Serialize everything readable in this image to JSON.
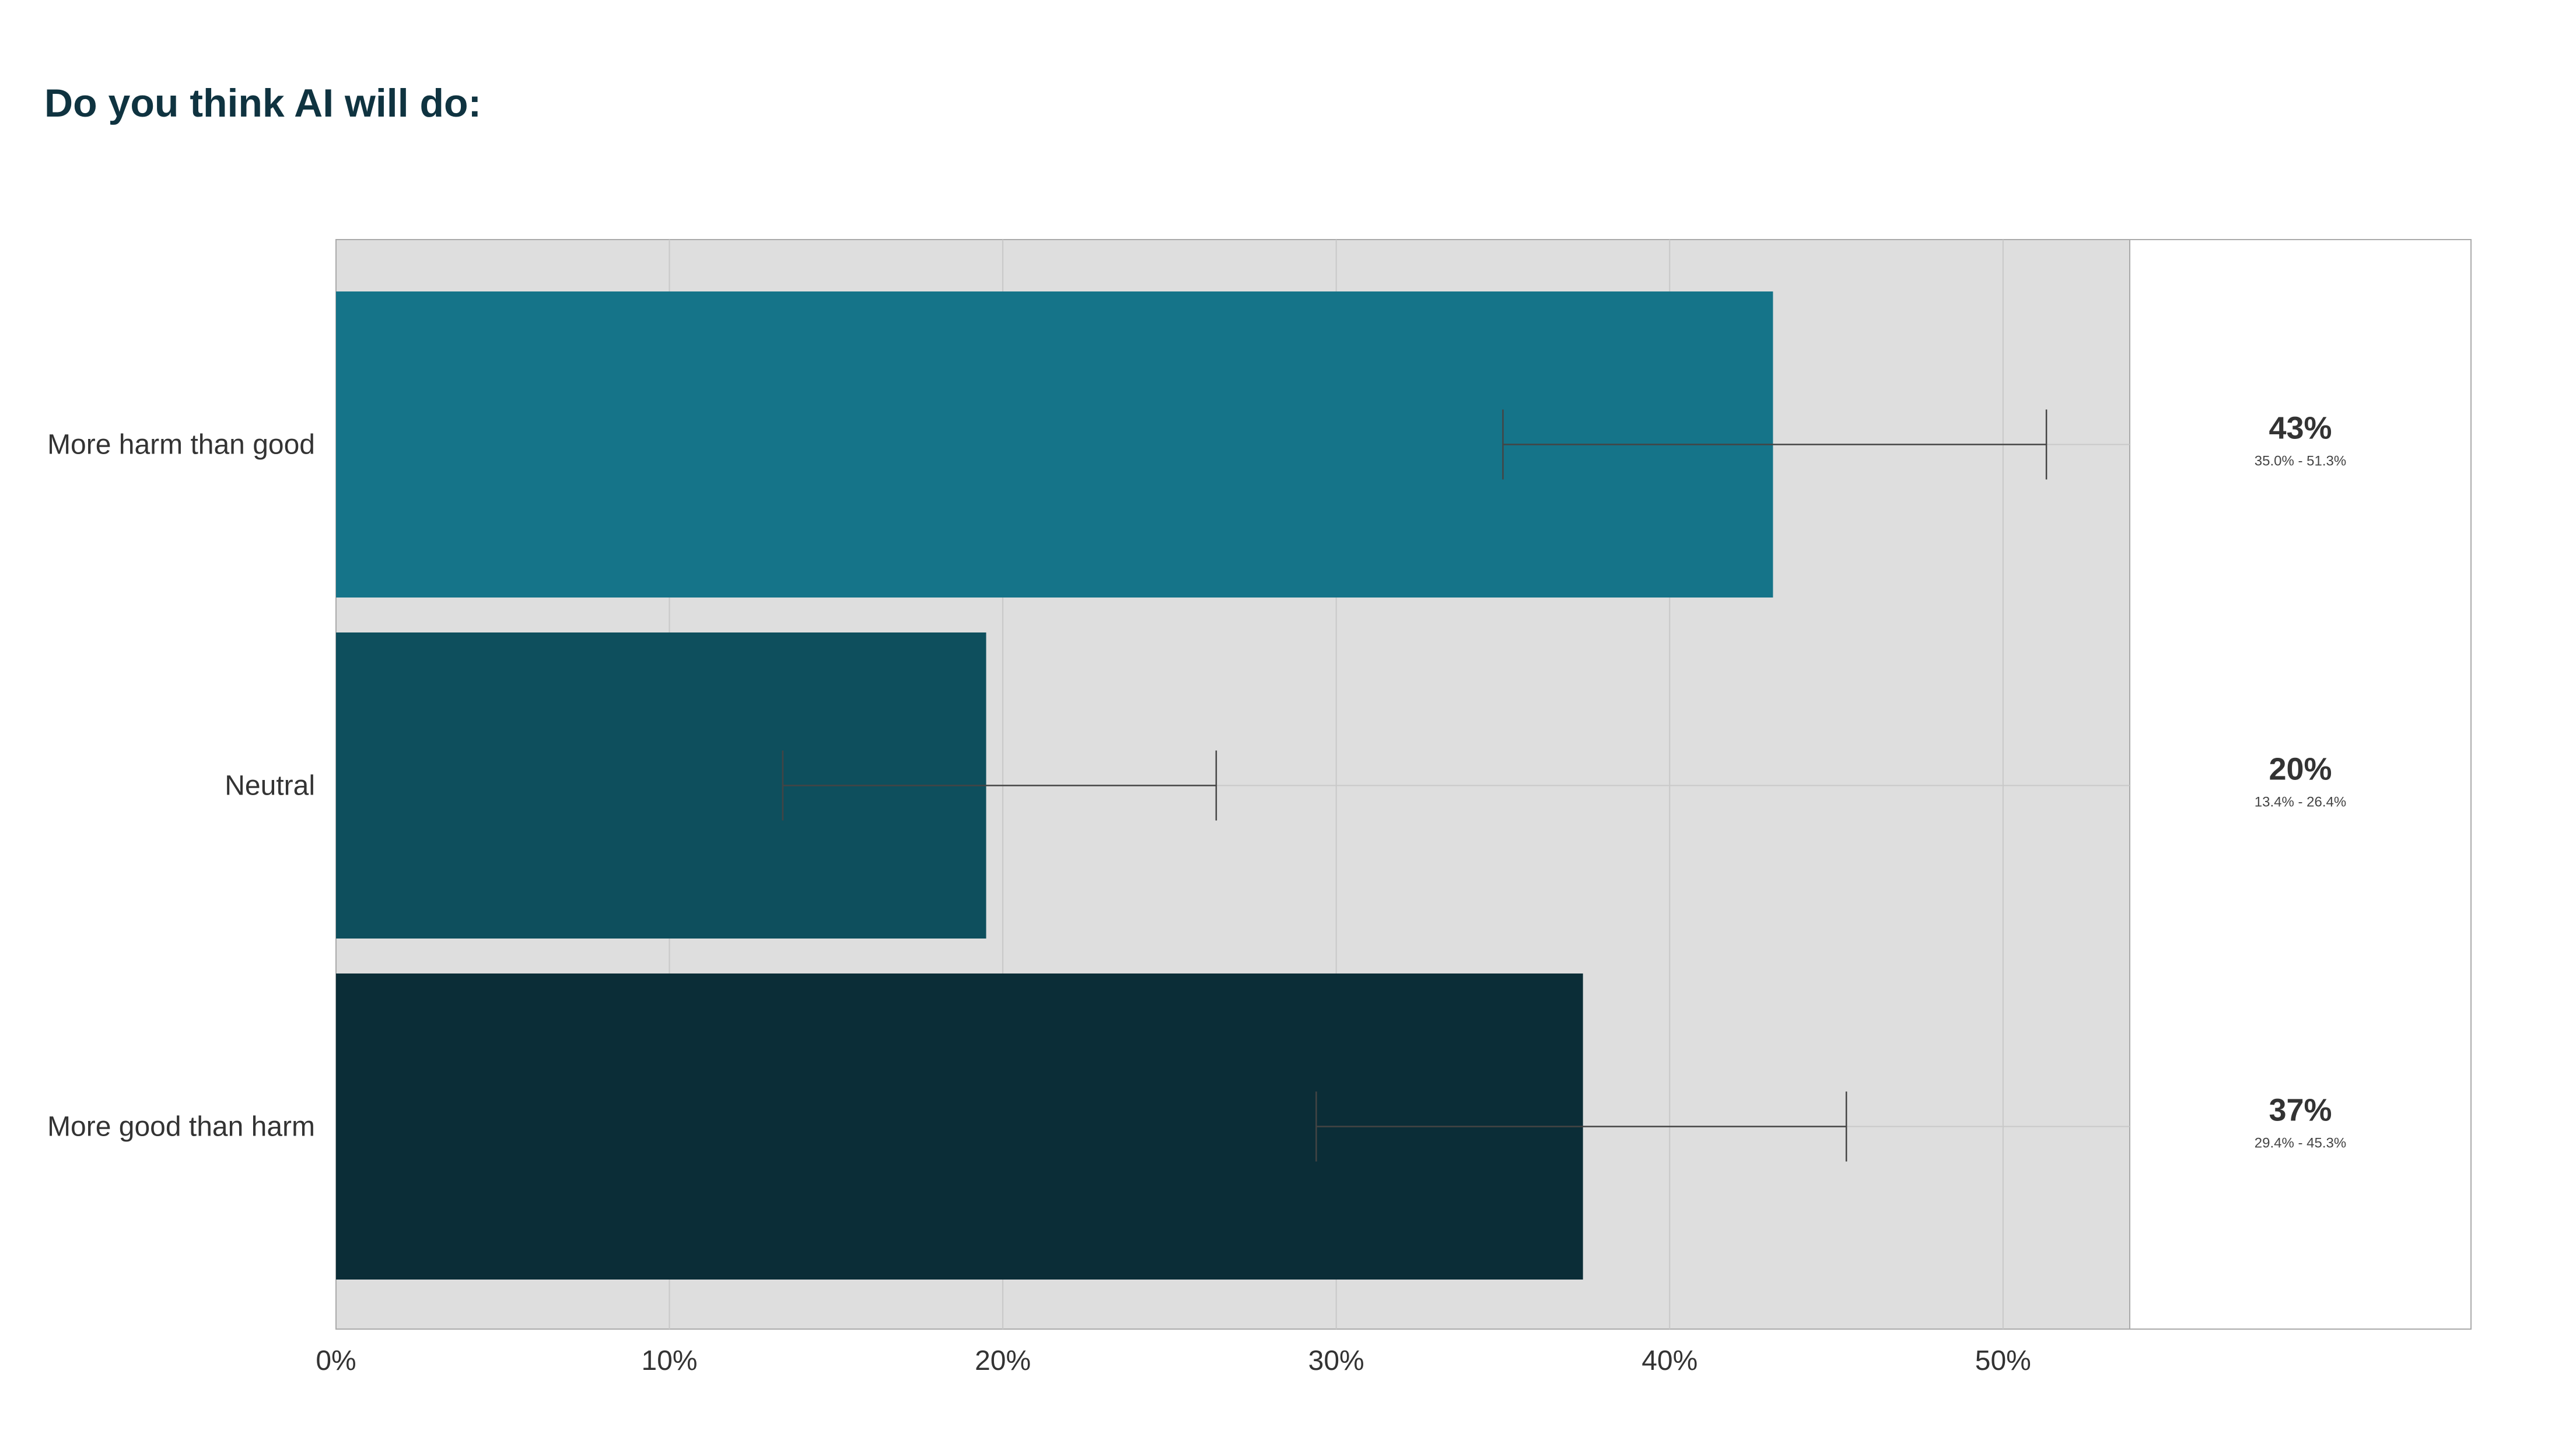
{
  "chart_data": {
    "type": "bar",
    "orientation": "horizontal",
    "title": "Do you think AI will do:",
    "categories": [
      "More harm than good",
      "Neutral",
      "More good than harm"
    ],
    "values": [
      43.1,
      19.5,
      37.4
    ],
    "error_low": [
      35.0,
      13.4,
      29.4
    ],
    "error_high": [
      51.3,
      26.4,
      45.3
    ],
    "value_labels": [
      "43%",
      "20%",
      "37%"
    ],
    "ci_labels": [
      "35.0% - 51.3%",
      "13.4% - 26.4%",
      "29.4% - 45.3%"
    ],
    "colors": [
      "#157489",
      "#0e4f5d",
      "#0b2d37"
    ],
    "xlim": [
      0,
      53.8
    ],
    "xticks": [
      0,
      10,
      20,
      30,
      40,
      50
    ],
    "xtick_labels": [
      "0%",
      "10%",
      "20%",
      "30%",
      "40%",
      "50%"
    ],
    "xlabel": "",
    "ylabel": "",
    "grid": true,
    "plot_background": "#dedede",
    "gridline_color": "#c8c8c8",
    "errorbar_color": "#444444"
  }
}
